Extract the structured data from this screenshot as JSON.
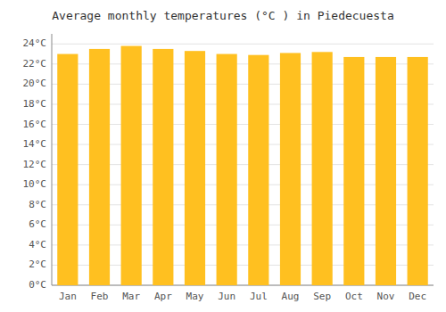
{
  "chart_data": {
    "type": "bar",
    "title": "Average monthly temperatures (°C ) in Piedecuesta",
    "categories": [
      "Jan",
      "Feb",
      "Mar",
      "Apr",
      "May",
      "Jun",
      "Jul",
      "Aug",
      "Sep",
      "Oct",
      "Nov",
      "Dec"
    ],
    "values": [
      23.0,
      23.5,
      23.8,
      23.5,
      23.3,
      23.0,
      22.9,
      23.1,
      23.2,
      22.7,
      22.7,
      22.7
    ],
    "color": "#FFC020",
    "ylim": [
      0,
      25
    ],
    "yticks": [
      {
        "value": 0,
        "label": "0°C"
      },
      {
        "value": 2,
        "label": "2°C"
      },
      {
        "value": 4,
        "label": "4°C"
      },
      {
        "value": 6,
        "label": "6°C"
      },
      {
        "value": 8,
        "label": "8°C"
      },
      {
        "value": 10,
        "label": "10°C"
      },
      {
        "value": 12,
        "label": "12°C"
      },
      {
        "value": 14,
        "label": "14°C"
      },
      {
        "value": 16,
        "label": "16°C"
      },
      {
        "value": 18,
        "label": "18°C"
      },
      {
        "value": 20,
        "label": "20°C"
      },
      {
        "value": 22,
        "label": "22°C"
      },
      {
        "value": 24,
        "label": "24°C"
      }
    ],
    "grid": true
  }
}
